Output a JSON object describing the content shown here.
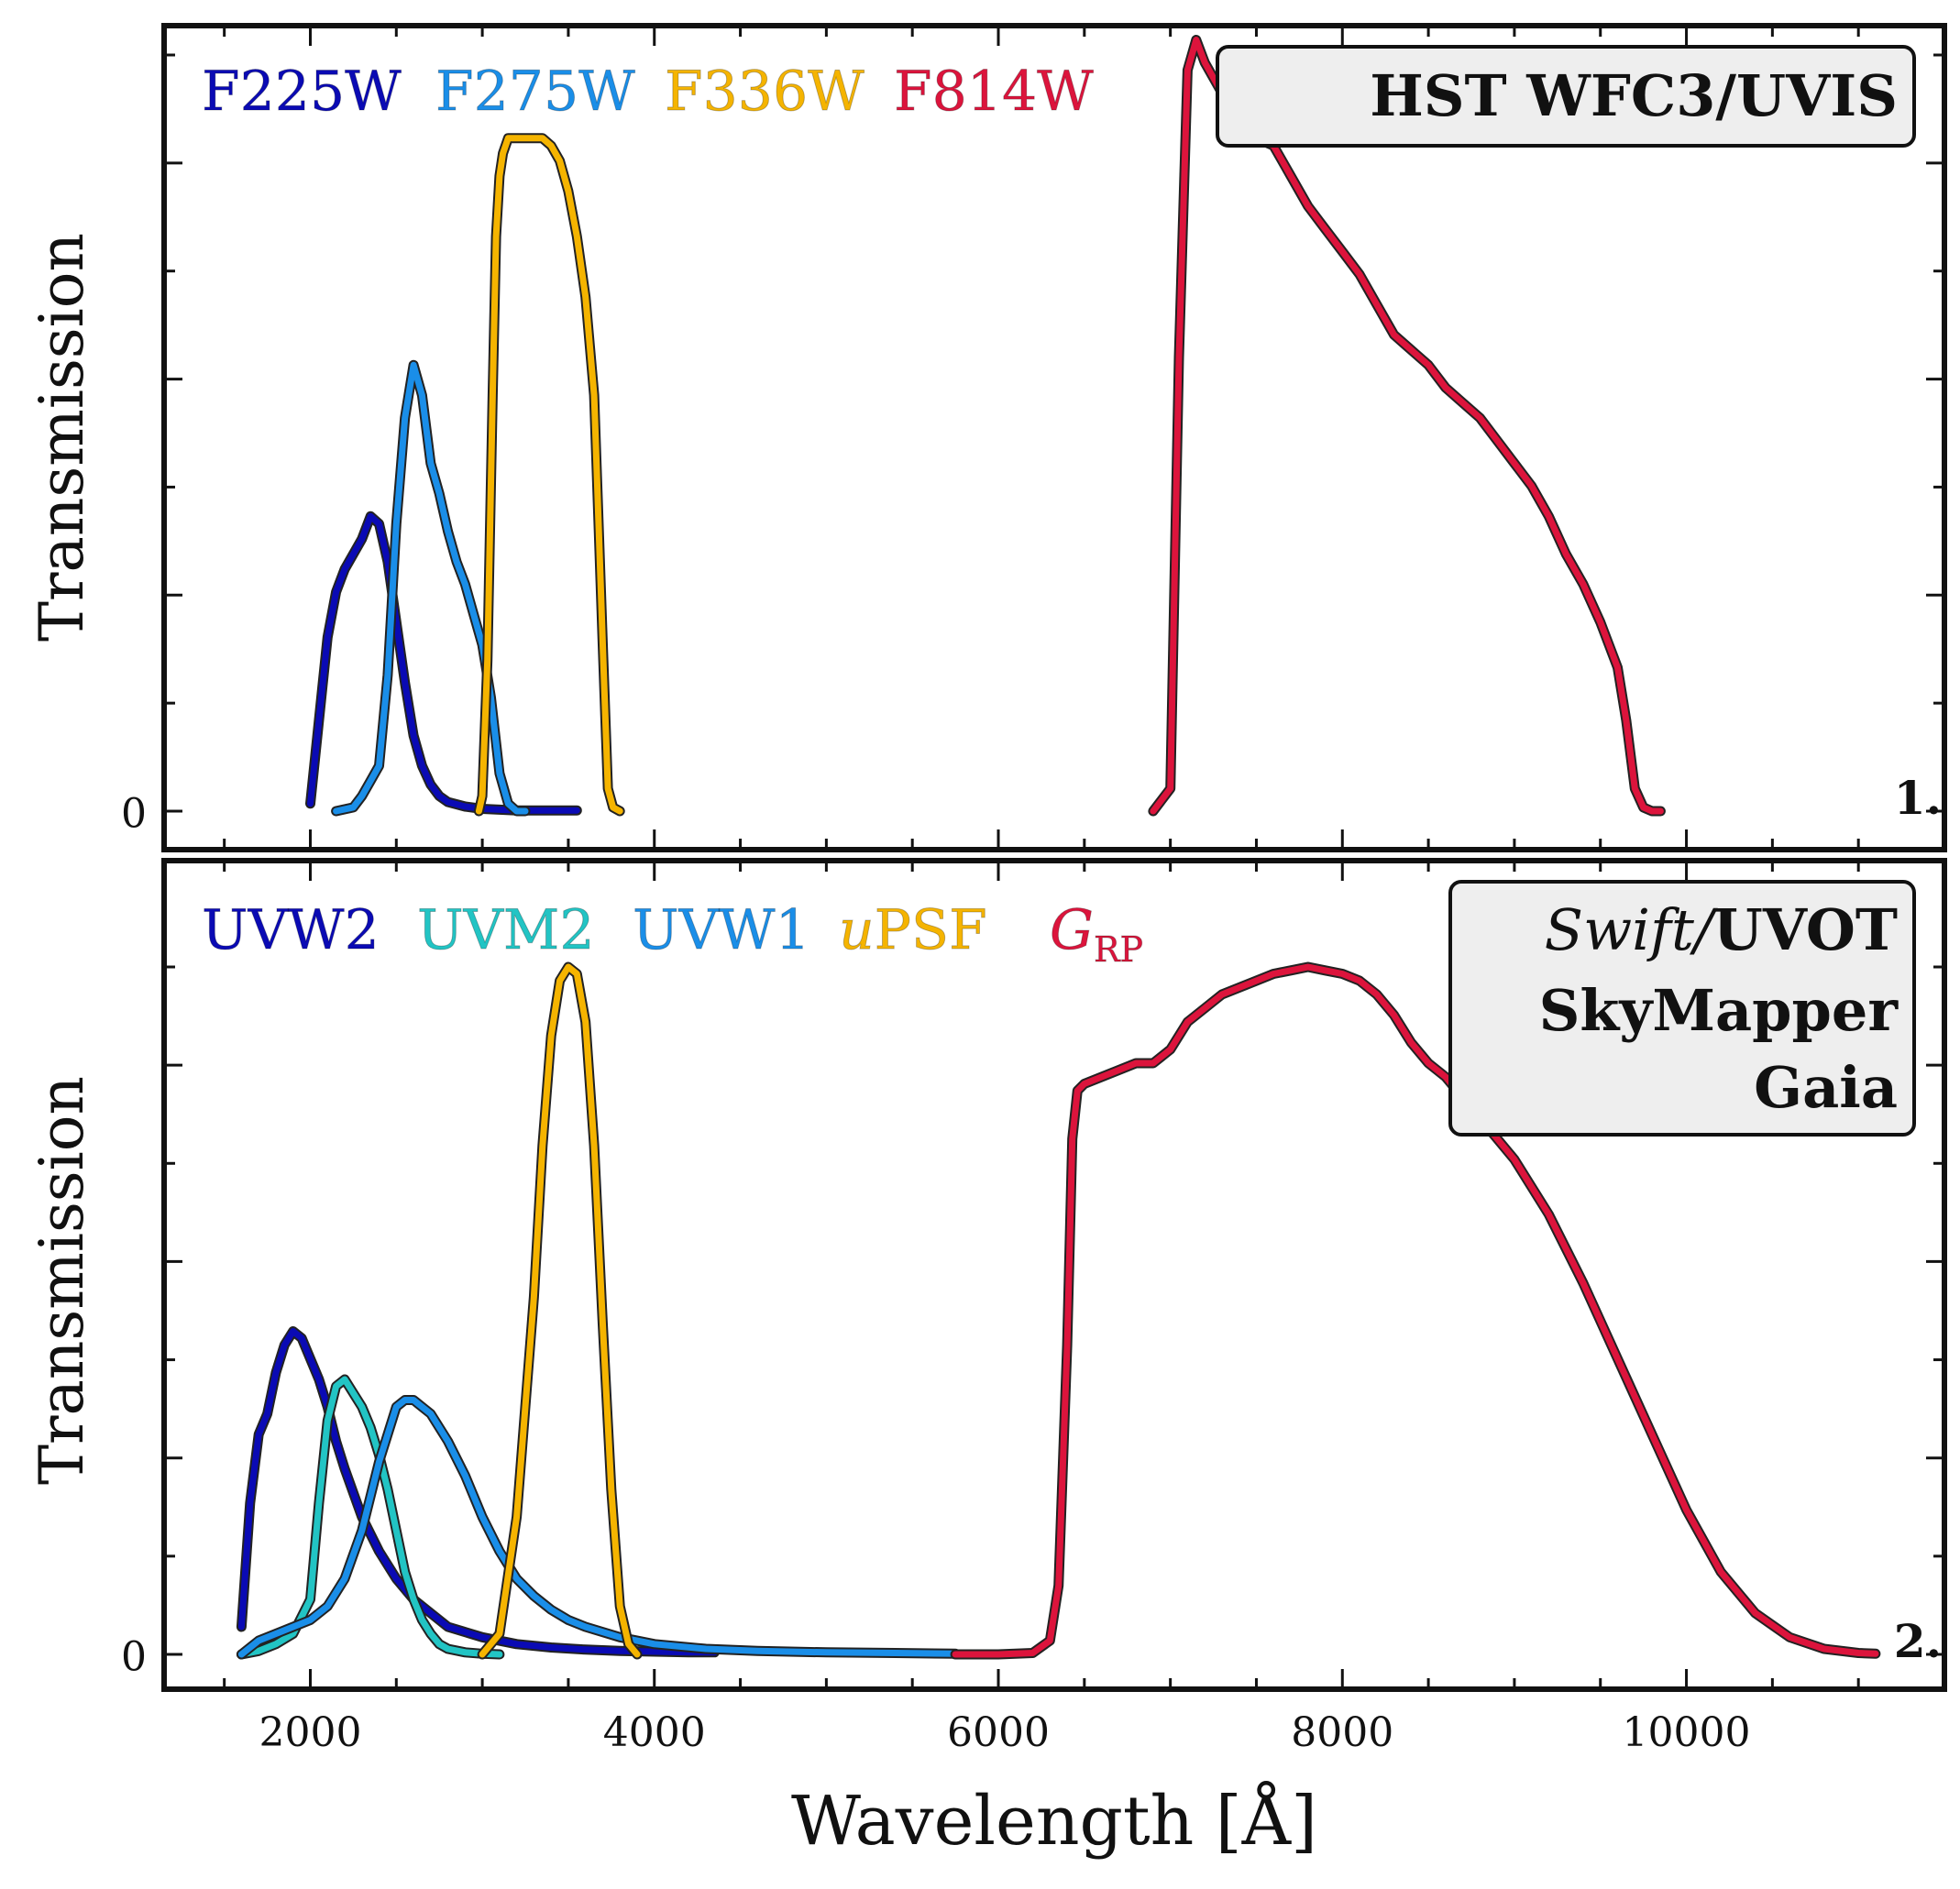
{
  "chart_data": [
    {
      "type": "line",
      "panel_label": "1.",
      "instrument_label_lines": [
        {
          "normal": "",
          "bold": "HST  WFC3/UVIS"
        }
      ],
      "ylabel": "Transmission",
      "yticks": [
        "0"
      ],
      "xlim": [
        1150,
        11500
      ],
      "ylim": [
        0,
        1.05
      ],
      "series": [
        {
          "name": "F225W",
          "color": "#0a0ab4",
          "x": [
            2000,
            2050,
            2100,
            2150,
            2200,
            2250,
            2300,
            2350,
            2400,
            2450,
            2500,
            2550,
            2600,
            2650,
            2700,
            2750,
            2800,
            2900,
            3000,
            3200,
            3400,
            3550
          ],
          "y": [
            0.01,
            0.12,
            0.23,
            0.29,
            0.32,
            0.34,
            0.36,
            0.39,
            0.38,
            0.33,
            0.25,
            0.17,
            0.1,
            0.06,
            0.035,
            0.02,
            0.012,
            0.006,
            0.003,
            0.001,
            0.001,
            0.001
          ]
        },
        {
          "name": "F275W",
          "color": "#1a8ee8",
          "x": [
            2150,
            2250,
            2300,
            2350,
            2400,
            2450,
            2500,
            2550,
            2600,
            2650,
            2700,
            2750,
            2800,
            2850,
            2900,
            2950,
            3000,
            3050,
            3100,
            3150,
            3200,
            3250
          ],
          "y": [
            0.0,
            0.005,
            0.02,
            0.04,
            0.06,
            0.18,
            0.38,
            0.52,
            0.59,
            0.55,
            0.46,
            0.42,
            0.37,
            0.33,
            0.3,
            0.26,
            0.22,
            0.15,
            0.05,
            0.01,
            0.0,
            0.0
          ]
        },
        {
          "name": "F336W",
          "color": "#f5b400",
          "x": [
            2980,
            3000,
            3030,
            3060,
            3080,
            3100,
            3120,
            3150,
            3200,
            3250,
            3300,
            3350,
            3400,
            3450,
            3500,
            3550,
            3600,
            3650,
            3700,
            3730,
            3760,
            3800
          ],
          "y": [
            0.0,
            0.02,
            0.2,
            0.55,
            0.76,
            0.84,
            0.87,
            0.89,
            0.89,
            0.89,
            0.89,
            0.89,
            0.88,
            0.86,
            0.82,
            0.76,
            0.68,
            0.55,
            0.22,
            0.03,
            0.005,
            0.0
          ]
        },
        {
          "name": "F814W",
          "color": "#dc143c",
          "x": [
            6900,
            7000,
            7050,
            7100,
            7150,
            7200,
            7300,
            7400,
            7500,
            7600,
            7700,
            7800,
            7900,
            8000,
            8100,
            8200,
            8300,
            8400,
            8500,
            8600,
            8700,
            8800,
            8900,
            9000,
            9100,
            9200,
            9300,
            9400,
            9500,
            9600,
            9650,
            9700,
            9750,
            9800,
            9850
          ],
          "y": [
            0.0,
            0.03,
            0.6,
            0.98,
            1.02,
            0.99,
            0.95,
            0.91,
            0.89,
            0.88,
            0.84,
            0.8,
            0.77,
            0.74,
            0.71,
            0.67,
            0.63,
            0.61,
            0.59,
            0.56,
            0.54,
            0.52,
            0.49,
            0.46,
            0.43,
            0.39,
            0.34,
            0.3,
            0.25,
            0.19,
            0.12,
            0.03,
            0.005,
            0.0,
            0.0
          ]
        }
      ]
    },
    {
      "type": "line",
      "panel_label": "2.",
      "instrument_label_lines": [
        {
          "normal": "Swift/",
          "bold": "UVOT"
        },
        {
          "normal": "",
          "bold": "SkyMapper"
        },
        {
          "normal": "",
          "bold": "Gaia"
        }
      ],
      "xlabel": "Wavelength [Å]",
      "ylabel": "Transmission",
      "yticks": [
        "0"
      ],
      "xticks": [
        "2000",
        "4000",
        "6000",
        "8000",
        "10000"
      ],
      "xlim": [
        1150,
        11500
      ],
      "ylim": [
        0,
        1.05
      ],
      "series": [
        {
          "name": "UVW2",
          "color": "#0a0ab4",
          "x": [
            1600,
            1650,
            1700,
            1750,
            1800,
            1850,
            1900,
            1950,
            2000,
            2050,
            2100,
            2150,
            2200,
            2300,
            2400,
            2500,
            2600,
            2700,
            2800,
            3000,
            3200,
            3400,
            3600,
            3800,
            4000,
            4200,
            4350
          ],
          "y": [
            0.04,
            0.22,
            0.32,
            0.35,
            0.41,
            0.45,
            0.47,
            0.46,
            0.43,
            0.4,
            0.36,
            0.31,
            0.27,
            0.2,
            0.15,
            0.11,
            0.08,
            0.06,
            0.04,
            0.025,
            0.015,
            0.01,
            0.007,
            0.005,
            0.004,
            0.003,
            0.003
          ]
        },
        {
          "name": "UVM2",
          "color": "#22c4c4",
          "x": [
            1600,
            1700,
            1800,
            1900,
            2000,
            2050,
            2100,
            2150,
            2200,
            2250,
            2300,
            2350,
            2400,
            2450,
            2500,
            2550,
            2600,
            2650,
            2700,
            2750,
            2800,
            2900,
            3000,
            3100
          ],
          "y": [
            0.0,
            0.005,
            0.015,
            0.03,
            0.08,
            0.22,
            0.34,
            0.39,
            0.4,
            0.38,
            0.36,
            0.33,
            0.29,
            0.24,
            0.18,
            0.12,
            0.08,
            0.05,
            0.03,
            0.015,
            0.008,
            0.003,
            0.001,
            0.0
          ]
        },
        {
          "name": "UVW1",
          "color": "#1a8ee8",
          "x": [
            1600,
            1700,
            1800,
            1900,
            2000,
            2100,
            2200,
            2300,
            2400,
            2500,
            2550,
            2600,
            2650,
            2700,
            2800,
            2900,
            3000,
            3100,
            3200,
            3300,
            3400,
            3500,
            3600,
            3800,
            4000,
            4300,
            4600,
            5000,
            5400,
            5750
          ],
          "y": [
            0.0,
            0.02,
            0.03,
            0.04,
            0.05,
            0.07,
            0.11,
            0.18,
            0.28,
            0.36,
            0.37,
            0.37,
            0.36,
            0.35,
            0.31,
            0.26,
            0.2,
            0.15,
            0.11,
            0.085,
            0.065,
            0.05,
            0.04,
            0.025,
            0.015,
            0.008,
            0.005,
            0.003,
            0.002,
            0.001
          ]
        },
        {
          "name": "uPSF",
          "color": "#f5b400",
          "x": [
            3000,
            3100,
            3200,
            3300,
            3350,
            3400,
            3450,
            3500,
            3550,
            3600,
            3650,
            3700,
            3750,
            3800,
            3850,
            3900
          ],
          "y": [
            0.0,
            0.03,
            0.2,
            0.52,
            0.74,
            0.9,
            0.98,
            1.0,
            0.99,
            0.92,
            0.74,
            0.48,
            0.24,
            0.07,
            0.015,
            0.0
          ]
        },
        {
          "name": "G_RP",
          "color": "#dc143c",
          "x": [
            5750,
            6000,
            6200,
            6300,
            6350,
            6400,
            6430,
            6460,
            6500,
            6600,
            6700,
            6800,
            6900,
            7000,
            7100,
            7200,
            7300,
            7400,
            7500,
            7600,
            7700,
            7800,
            7900,
            8000,
            8100,
            8200,
            8300,
            8400,
            8500,
            8600,
            8700,
            8800,
            8900,
            9000,
            9200,
            9400,
            9600,
            9800,
            10000,
            10200,
            10400,
            10600,
            10800,
            11000,
            11100
          ],
          "y": [
            0.0,
            0.0,
            0.002,
            0.02,
            0.1,
            0.45,
            0.75,
            0.82,
            0.83,
            0.84,
            0.85,
            0.86,
            0.86,
            0.88,
            0.92,
            0.94,
            0.96,
            0.97,
            0.98,
            0.99,
            0.995,
            1.0,
            0.995,
            0.99,
            0.98,
            0.96,
            0.93,
            0.89,
            0.86,
            0.84,
            0.81,
            0.78,
            0.75,
            0.72,
            0.64,
            0.54,
            0.43,
            0.32,
            0.21,
            0.12,
            0.06,
            0.025,
            0.008,
            0.002,
            0.001
          ]
        }
      ]
    }
  ]
}
